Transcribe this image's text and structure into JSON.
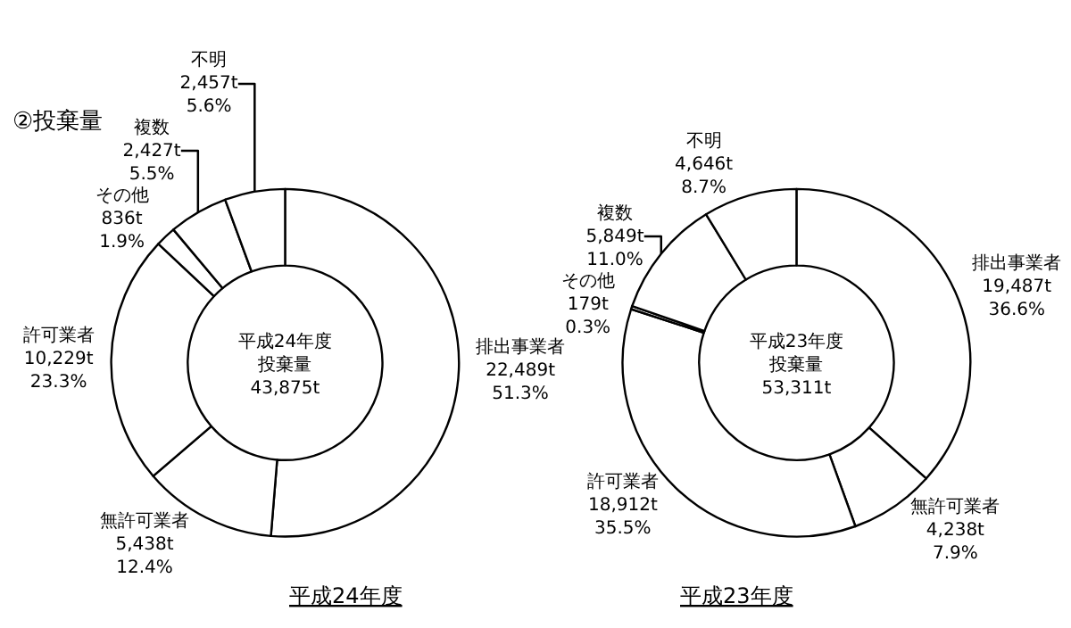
{
  "chart_data": [
    {
      "type": "donut",
      "title": "②投棄量",
      "xlabel": "平成24年度",
      "annotations": [
        "平成24年度",
        "投棄量",
        "43,875t"
      ],
      "categories": [
        "排出事業者",
        "無許可業者",
        "許可業者",
        "その他",
        "複数",
        "不明"
      ],
      "values": [
        51.3,
        12.4,
        23.3,
        1.9,
        5.5,
        5.6
      ],
      "value_labels": [
        "22,489t\n51.3%",
        "5,438t\n12.4%",
        "10,229t\n23.3%",
        "836t\n1.9%",
        "2,427t\n5.5%",
        "2,457t\n5.6%"
      ],
      "colors": [
        "#ffffff",
        "#ffffff",
        "#ffffff",
        "#ffffff",
        "#ffffff",
        "#ffffff"
      ]
    },
    {
      "type": "donut",
      "xlabel": "平成23年度",
      "annotations": [
        "平成23年度",
        "投棄量",
        "53,311t"
      ],
      "categories": [
        "排出事業者",
        "無許可業者",
        "許可業者",
        "その他",
        "複数",
        "不明"
      ],
      "values": [
        36.6,
        7.9,
        35.5,
        0.3,
        11.0,
        8.7
      ],
      "value_labels": [
        "19,487t\n36.6%",
        "4,238t\n7.9%",
        "18,912t\n35.5%",
        "179t\n0.3%",
        "5,849t\n11.0%",
        "4,646t\n8.7%"
      ],
      "colors": [
        "#ffffff",
        "#ffffff",
        "#ffffff",
        "#ffffff",
        "#ffffff",
        "#ffffff"
      ]
    }
  ]
}
